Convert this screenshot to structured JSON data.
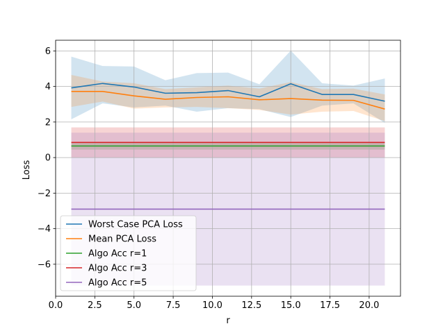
{
  "chart_data": {
    "type": "line",
    "xlabel": "r",
    "ylabel": "Loss",
    "xlim": [
      0.0,
      22.0
    ],
    "ylim": [
      -7.8,
      6.6
    ],
    "xticks": [
      "0.0",
      "2.5",
      "5.0",
      "7.5",
      "10.0",
      "12.5",
      "15.0",
      "17.5",
      "20.0"
    ],
    "yticks": [
      "−6",
      "−4",
      "−2",
      "0",
      "2",
      "4",
      "6"
    ],
    "grid": true,
    "legend_position": "lower-left",
    "series": [
      {
        "name": "Worst Case PCA Loss",
        "color": "#1f77b4",
        "x": [
          1,
          3,
          5,
          7,
          9,
          11,
          13,
          15,
          17,
          19,
          21
        ],
        "y": [
          3.92,
          4.17,
          3.97,
          3.62,
          3.65,
          3.77,
          3.42,
          4.15,
          3.55,
          3.55,
          3.17
        ],
        "band_upper": [
          5.68,
          5.15,
          5.12,
          4.35,
          4.75,
          4.78,
          4.12,
          6.02,
          4.18,
          4.05,
          4.45
        ],
        "band_lower": [
          2.15,
          3.05,
          2.82,
          2.92,
          2.58,
          2.78,
          2.72,
          2.28,
          2.92,
          3.05,
          1.95
        ]
      },
      {
        "name": "Mean PCA Loss",
        "color": "#ff7f0e",
        "x": [
          1,
          3,
          5,
          7,
          9,
          11,
          13,
          15,
          17,
          19,
          21
        ],
        "y": [
          3.72,
          3.72,
          3.47,
          3.28,
          3.38,
          3.42,
          3.25,
          3.32,
          3.23,
          3.22,
          2.73
        ],
        "band_upper": [
          4.65,
          4.28,
          4.18,
          3.85,
          3.95,
          4.05,
          3.88,
          4.25,
          3.85,
          3.88,
          3.55
        ],
        "band_lower": [
          2.85,
          3.15,
          2.75,
          2.82,
          2.85,
          2.78,
          2.68,
          2.42,
          2.58,
          2.62,
          2.05
        ]
      },
      {
        "name": "Algo Acc r=1",
        "color": "#2ca02c",
        "x": [
          1,
          21
        ],
        "y": [
          0.65,
          0.65
        ],
        "band_upper": [
          0.85,
          0.85
        ],
        "band_lower": [
          0.45,
          0.45
        ]
      },
      {
        "name": "Algo Acc r=3",
        "color": "#d62728",
        "x": [
          1,
          21
        ],
        "y": [
          0.85,
          0.85
        ],
        "band_upper": [
          1.7,
          1.7
        ],
        "band_lower": [
          0.0,
          0.0
        ]
      },
      {
        "name": "Algo Acc r=5",
        "color": "#9467bd",
        "x": [
          1,
          21
        ],
        "y": [
          -2.9,
          -2.9
        ],
        "band_upper": [
          1.4,
          1.4
        ],
        "band_lower": [
          -7.2,
          -7.2
        ]
      }
    ]
  }
}
